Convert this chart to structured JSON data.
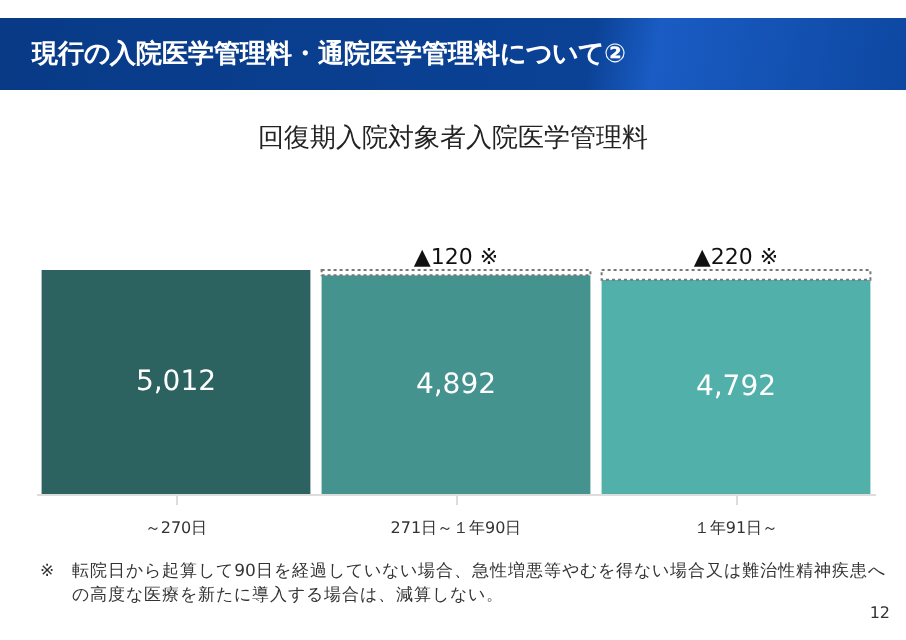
{
  "chart_data": {
    "type": "bar",
    "title": "現行の入院医学管理料・通院医学管理料について②",
    "subtitle": "回復期入院対象者入院医学管理料",
    "categories": [
      "～270日",
      "271日～１年90日",
      "１年91日～"
    ],
    "stacked": true,
    "series": [
      {
        "colors": [
          "#2c6360",
          "#44938f",
          "#52b0ab"
        ],
        "values": [
          5012,
          4892,
          4792
        ],
        "value_labels": [
          "5,012",
          "4,892",
          "4,792"
        ]
      },
      {
        "color": "#ffffff",
        "values": [
          null,
          120,
          220
        ],
        "value_labels": [
          null,
          "▲120 ※",
          "▲220 ※"
        ],
        "line_style": "dotted"
      }
    ],
    "annotations": [
      "※　転院日から起算して90日を経過していない場合、急性増悪等やむを得ない場合又は難治性精神疾患への高度な医療を新たに導入する場合は、減算しない。",
      "12"
    ]
  }
}
